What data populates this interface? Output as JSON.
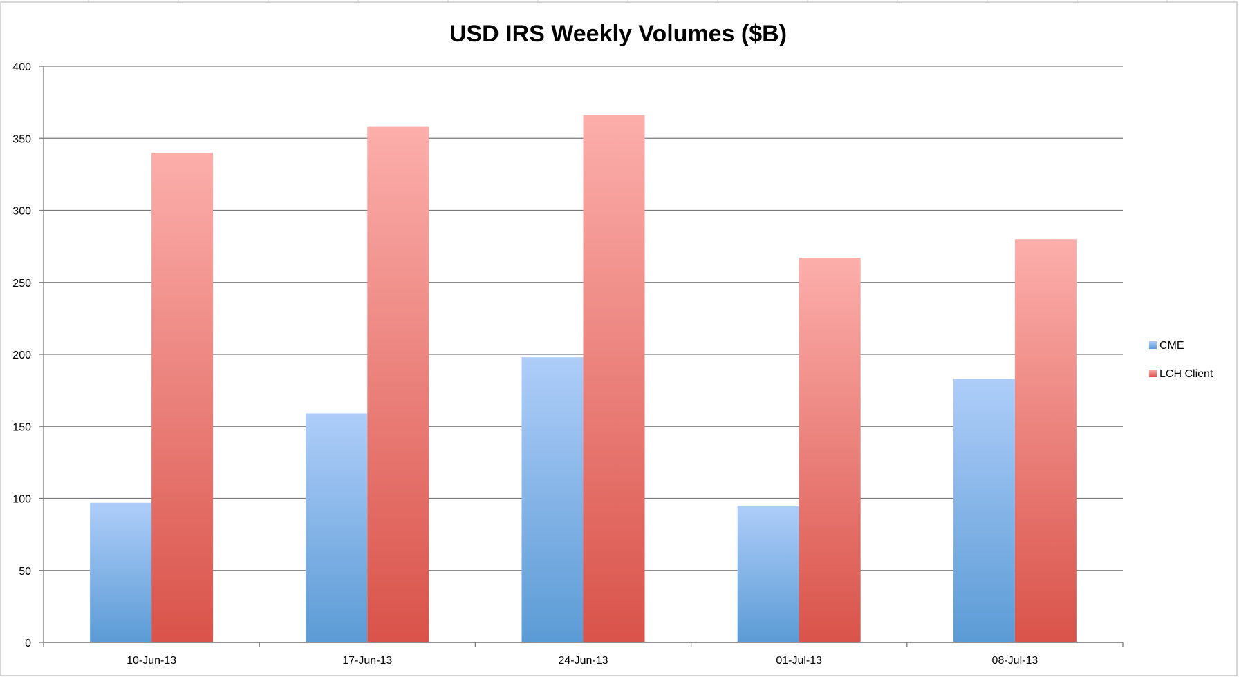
{
  "chart_data": {
    "type": "bar",
    "title": "USD IRS Weekly Volumes ($B)",
    "xlabel": "",
    "ylabel": "",
    "categories": [
      "10-Jun-13",
      "17-Jun-13",
      "24-Jun-13",
      "01-Jul-13",
      "08-Jul-13"
    ],
    "series": [
      {
        "name": "CME",
        "values": [
          97,
          159,
          198,
          95,
          183
        ],
        "color": "#5b9bd5",
        "color_light": "#aecdf9"
      },
      {
        "name": "LCH Client",
        "values": [
          340,
          358,
          366,
          267,
          280
        ],
        "color": "#d9534a",
        "color_light": "#fcaeab"
      }
    ],
    "ylim": [
      0,
      400
    ],
    "yticks": [
      "0",
      "50",
      "100",
      "150",
      "200",
      "250",
      "300",
      "350",
      "400"
    ],
    "grid": true,
    "legend_position": "right"
  }
}
